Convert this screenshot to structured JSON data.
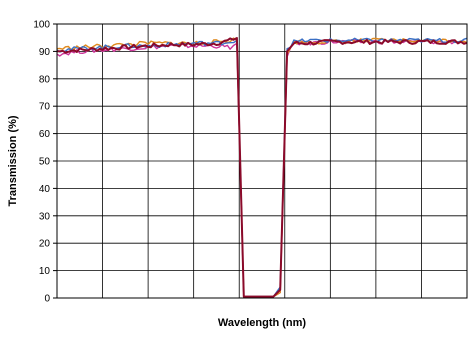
{
  "chart_data": {
    "type": "line",
    "title": "",
    "xlabel": "Wavelength (nm)",
    "ylabel": "Transmission (%)",
    "ylim": [
      0,
      100
    ],
    "yticks": [
      0,
      10,
      20,
      30,
      40,
      50,
      60,
      70,
      80,
      90,
      100
    ],
    "xlim": [
      0,
      9
    ],
    "xticks_printed": false,
    "grid": true,
    "legend": "none",
    "x": [
      0,
      0.5,
      1,
      1.5,
      2,
      2.5,
      3,
      3.5,
      3.8,
      3.95,
      4.1,
      4.5,
      4.75,
      4.9,
      5.05,
      5.2,
      5.5,
      6,
      7,
      8,
      9
    ],
    "series": [
      {
        "color": "#8b0a2a",
        "values": [
          90,
          90.5,
          91,
          91.5,
          92,
          92.5,
          92.5,
          93,
          94,
          95,
          0.5,
          0.5,
          0.5,
          3,
          90,
          93,
          93,
          93.5,
          93.5,
          93.5,
          93.5
        ]
      },
      {
        "color": "#cc3399",
        "values": [
          89,
          90,
          90.5,
          91,
          91.5,
          92,
          92,
          92,
          91.5,
          92.5,
          0.5,
          0.5,
          0.5,
          2,
          88,
          93,
          93,
          93.5,
          93.5,
          93.5,
          93.5
        ]
      },
      {
        "color": "#e08a1e",
        "values": [
          91,
          91.5,
          92,
          92.5,
          93,
          93,
          93,
          93.5,
          94,
          94.5,
          0.5,
          0.5,
          0.5,
          2,
          89,
          93.5,
          93.5,
          93.5,
          94,
          94,
          94
        ]
      },
      {
        "color": "#3a6fc4",
        "values": [
          90.5,
          91,
          91.5,
          92,
          92,
          92.5,
          93,
          93,
          93.5,
          94,
          0.5,
          0.5,
          0.5,
          4,
          91,
          93.5,
          94,
          94,
          94,
          94,
          94
        ]
      }
    ]
  }
}
